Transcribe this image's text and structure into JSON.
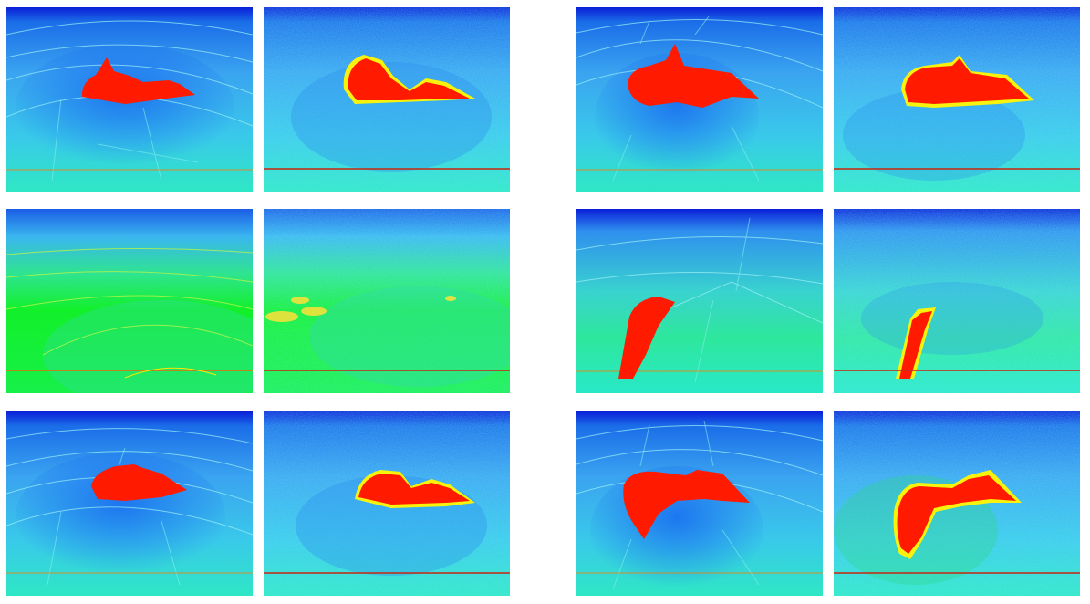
{
  "colors": {
    "background": "#ffffff",
    "map_top": "#0a1fd8",
    "map_mid": "#3aa3f0",
    "map_low": "#35e6d2",
    "map_green": "#12f02a",
    "horizon": "#ff5a00",
    "salt_body": "#ff1a00"
  },
  "panels": [
    {
      "row": 0,
      "col": 0,
      "kind": "label",
      "style": "dome",
      "has_body": true
    },
    {
      "row": 0,
      "col": 1,
      "kind": "prediction",
      "style": "dome",
      "has_body": true
    },
    {
      "row": 0,
      "col": 2,
      "kind": "label",
      "style": "dome",
      "has_body": true
    },
    {
      "row": 0,
      "col": 3,
      "kind": "prediction",
      "style": "dome",
      "has_body": true
    },
    {
      "row": 1,
      "col": 0,
      "kind": "label",
      "style": "green",
      "has_body": false
    },
    {
      "row": 1,
      "col": 1,
      "kind": "prediction",
      "style": "green",
      "has_body": false
    },
    {
      "row": 1,
      "col": 2,
      "kind": "label",
      "style": "slant",
      "has_body": true
    },
    {
      "row": 1,
      "col": 3,
      "kind": "prediction",
      "style": "slant",
      "has_body": true
    },
    {
      "row": 2,
      "col": 0,
      "kind": "label",
      "style": "dome",
      "has_body": true
    },
    {
      "row": 2,
      "col": 1,
      "kind": "prediction",
      "style": "dome",
      "has_body": true
    },
    {
      "row": 2,
      "col": 2,
      "kind": "label",
      "style": "dome",
      "has_body": true
    },
    {
      "row": 2,
      "col": 3,
      "kind": "prediction",
      "style": "dome",
      "has_body": true
    }
  ]
}
